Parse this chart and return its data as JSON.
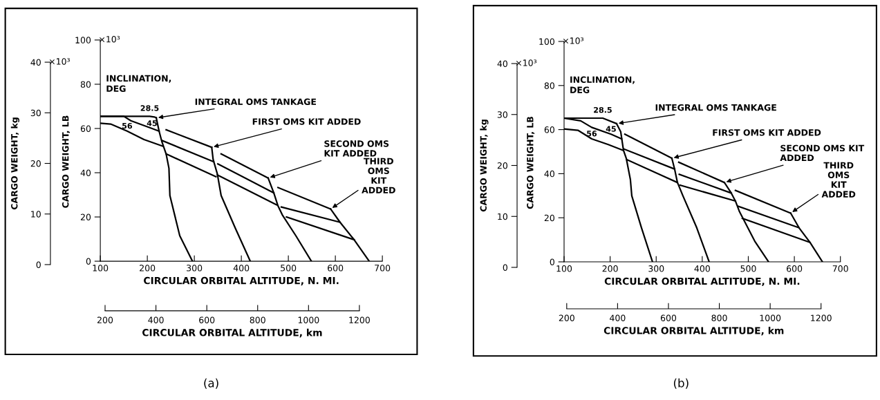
{
  "chart_data": [
    {
      "type": "line",
      "title": "(a)",
      "xlabel": "CIRCULAR ORBITAL ALTITUDE, N. MI.",
      "ylabel": "CARGO WEIGHT, LB",
      "y2label": "CARGO WEIGHT, kg",
      "x2label": "CIRCULAR ORBITAL ALTITUDE, km",
      "legend_title": "INCLINATION,\nDEG",
      "xlim": [
        100,
        700
      ],
      "xticks": [
        100,
        200,
        300,
        400,
        500,
        600,
        700
      ],
      "ylim": [
        0,
        100
      ],
      "yticks": [
        0,
        20,
        40,
        60,
        80,
        100
      ],
      "y2lim": [
        0,
        40
      ],
      "y2ticks": [
        0,
        10,
        20,
        30,
        40
      ],
      "x2lim": [
        200,
        1200
      ],
      "x2ticks": [
        200,
        400,
        600,
        800,
        1000,
        1200
      ],
      "series": [
        {
          "name": "28.5",
          "color": "#000000",
          "x": [
            100,
            205,
            215,
            219
          ],
          "values": [
            65.5,
            65.5,
            65.2,
            64.8
          ]
        },
        {
          "name": "45",
          "color": "#000000",
          "x": [
            100,
            150,
            165,
            210,
            225
          ],
          "values": [
            65.5,
            65.5,
            63.5,
            60,
            58.8
          ]
        },
        {
          "name": "56",
          "color": "#000000",
          "x": [
            100,
            122,
            157,
            193,
            233
          ],
          "values": [
            62.4,
            62,
            58.8,
            55,
            52
          ]
        },
        {
          "color": "#000000",
          "x": [
            240,
            337
          ],
          "values": [
            59.4,
            51.5
          ]
        },
        {
          "color": "#000000",
          "x": [
            232,
            341
          ],
          "values": [
            54.5,
            45
          ]
        },
        {
          "color": "#000000",
          "x": [
            240,
            346
          ],
          "values": [
            48.5,
            38.2
          ]
        },
        {
          "color": "#000000",
          "x": [
            357,
            457
          ],
          "values": [
            48.5,
            37.6
          ]
        },
        {
          "color": "#000000",
          "x": [
            350,
            469
          ],
          "values": [
            44,
            30.9
          ]
        },
        {
          "color": "#000000",
          "x": [
            349,
            475
          ],
          "values": [
            39,
            25.5
          ]
        },
        {
          "color": "#000000",
          "x": [
            478,
            590
          ],
          "values": [
            33.3,
            23.6
          ]
        },
        {
          "color": "#000000",
          "x": [
            485,
            610
          ],
          "values": [
            24.5,
            17.6
          ]
        },
        {
          "color": "#000000",
          "x": [
            496,
            640
          ],
          "values": [
            20,
            9.7
          ]
        },
        {
          "color": "#000000",
          "x": [
            219,
            225,
            231,
            240,
            246,
            248,
            269,
            296
          ],
          "values": [
            64.8,
            58.8,
            54,
            48.5,
            42,
            29.7,
            11.5,
            0
          ]
        },
        {
          "color": "#000000",
          "x": [
            337,
            340,
            349,
            357,
            387,
            419
          ],
          "values": [
            51.5,
            46,
            39.4,
            29.7,
            15,
            0
          ]
        },
        {
          "color": "#000000",
          "x": [
            457,
            469,
            478,
            487,
            516,
            549
          ],
          "values": [
            37.6,
            30.9,
            25,
            21,
            11.5,
            0
          ]
        },
        {
          "color": "#000000",
          "x": [
            590,
            610,
            640,
            672
          ],
          "values": [
            23.6,
            17.6,
            9.7,
            0
          ]
        }
      ],
      "annotations": [
        {
          "text": "INTEGRAL OMS TANKAGE",
          "x": 219,
          "y": 64.8
        },
        {
          "text": "FIRST OMS KIT ADDED",
          "x": 337,
          "y": 51.5
        },
        {
          "text": "SECOND OMS\nKIT ADDED",
          "x": 457,
          "y": 37.6
        },
        {
          "text": "THIRD\nOMS\nKIT\nADDED",
          "x": 590,
          "y": 23.6
        },
        "×10³",
        "×10³"
      ]
    },
    {
      "type": "line",
      "title": "(b)",
      "xlabel": "CIRCULAR ORBITAL ALTITUDE, N. MI.",
      "ylabel": "CARGO WEIGHT, LB",
      "y2label": "CARGO WEIGHT, kg",
      "x2label": "CIRCULAR ORBITAL ALTITUDE, km",
      "legend_title": "INCLINATION,\nDEG",
      "xlim": [
        100,
        700
      ],
      "xticks": [
        100,
        200,
        300,
        400,
        500,
        600,
        700
      ],
      "ylim": [
        0,
        100
      ],
      "yticks": [
        0,
        20,
        40,
        60,
        80,
        100
      ],
      "y2lim": [
        0,
        40
      ],
      "y2ticks": [
        0,
        10,
        20,
        30,
        40
      ],
      "x2lim": [
        200,
        1200
      ],
      "x2ticks": [
        200,
        400,
        600,
        800,
        1000,
        1200
      ],
      "series": [
        {
          "name": "28.5",
          "color": "#000000",
          "x": [
            100,
            184,
            214
          ],
          "values": [
            65.2,
            65.2,
            62.7
          ]
        },
        {
          "name": "45",
          "color": "#000000",
          "x": [
            100,
            136,
            160,
            202,
            225
          ],
          "values": [
            65.2,
            64,
            61,
            57.9,
            55.8
          ]
        },
        {
          "name": "56",
          "color": "#000000",
          "x": [
            100,
            130,
            160,
            196,
            228
          ],
          "values": [
            60.3,
            59.7,
            55.8,
            53.2,
            50.6
          ]
        },
        {
          "color": "#000000",
          "x": [
            232,
            334
          ],
          "values": [
            57.9,
            47
          ]
        },
        {
          "color": "#000000",
          "x": [
            230,
            340
          ],
          "values": [
            51.2,
            42.1
          ]
        },
        {
          "color": "#000000",
          "x": [
            236,
            346
          ],
          "values": [
            46.4,
            36
          ]
        },
        {
          "color": "#000000",
          "x": [
            349,
            448
          ],
          "values": [
            45.2,
            36
          ]
        },
        {
          "color": "#000000",
          "x": [
            350,
            463
          ],
          "values": [
            39.7,
            31.2
          ]
        },
        {
          "color": "#000000",
          "x": [
            352,
            472
          ],
          "values": [
            34.8,
            27.6
          ]
        },
        {
          "color": "#000000",
          "x": [
            472,
            592
          ],
          "values": [
            32.4,
            22.1
          ]
        },
        {
          "color": "#000000",
          "x": [
            478,
            610
          ],
          "values": [
            25.2,
            15.5
          ]
        },
        {
          "color": "#000000",
          "x": [
            487,
            634
          ],
          "values": [
            19.7,
            8.8
          ]
        },
        {
          "color": "#000000",
          "x": [
            214,
            223,
            229,
            235,
            244,
            247,
            268,
            292
          ],
          "values": [
            62.7,
            59,
            50.6,
            47,
            37.3,
            30,
            15.5,
            0
          ]
        },
        {
          "color": "#000000",
          "x": [
            334,
            340,
            346,
            358,
            388,
            415
          ],
          "values": [
            47,
            42.1,
            36.1,
            30,
            15.5,
            0
          ]
        },
        {
          "color": "#000000",
          "x": [
            448,
            463,
            472,
            481,
            514,
            544
          ],
          "values": [
            36,
            31.2,
            27.6,
            22.7,
            9.4,
            0
          ]
        },
        {
          "color": "#000000",
          "x": [
            592,
            610,
            634,
            661
          ],
          "values": [
            22.1,
            15.5,
            8.8,
            0
          ]
        }
      ],
      "annotations": [
        {
          "text": "INTEGRAL OMS TANKAGE",
          "x": 214,
          "y": 62.7
        },
        {
          "text": "FIRST OMS KIT ADDED",
          "x": 334,
          "y": 47
        },
        {
          "text": "SECOND OMS KIT\nADDED",
          "x": 448,
          "y": 36
        },
        {
          "text": "THIRD\nOMS\nKIT\nADDED",
          "x": 592,
          "y": 22.1
        },
        "×10³",
        "×10³"
      ]
    }
  ]
}
